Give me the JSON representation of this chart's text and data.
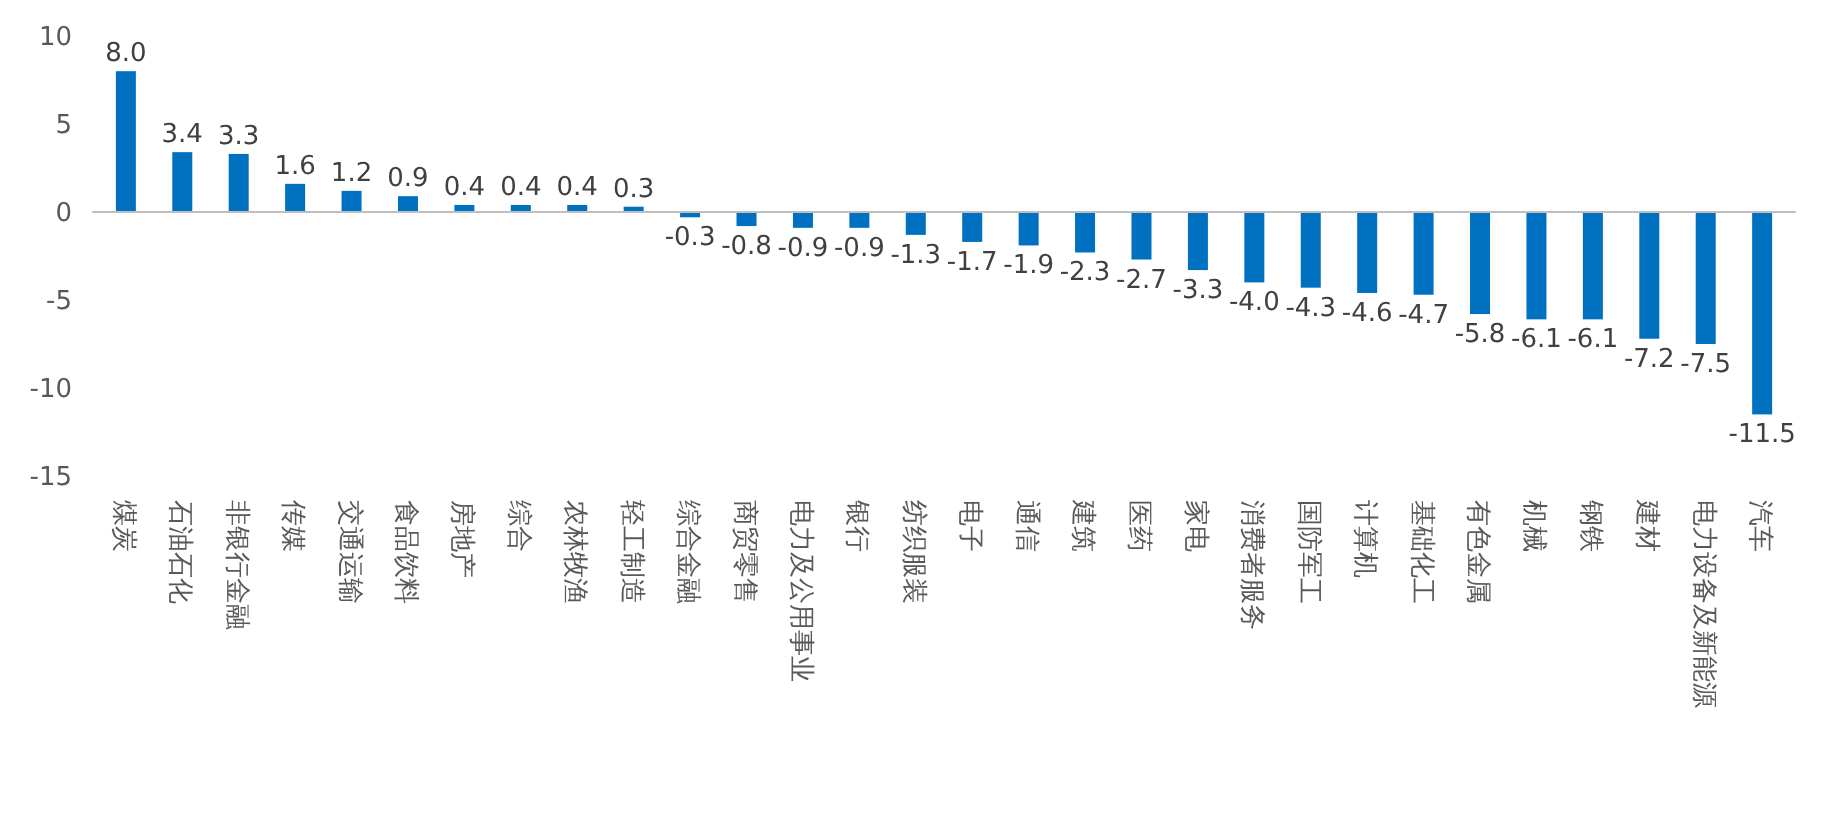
{
  "chart_data": {
    "type": "bar",
    "categories": [
      "煤炭",
      "石油石化",
      "非银行金融",
      "传媒",
      "交通运输",
      "食品饮料",
      "房地产",
      "综合",
      "农林牧渔",
      "轻工制造",
      "综合金融",
      "商贸零售",
      "电力及公用事业",
      "银行",
      "纺织服装",
      "电子",
      "通信",
      "建筑",
      "医药",
      "家电",
      "消费者服务",
      "国防军工",
      "计算机",
      "基础化工",
      "有色金属",
      "机械",
      "钢铁",
      "建材",
      "电力设备及新能源",
      "汽车"
    ],
    "values": [
      8.0,
      3.4,
      3.3,
      1.6,
      1.2,
      0.9,
      0.4,
      0.4,
      0.4,
      0.3,
      -0.3,
      -0.8,
      -0.9,
      -0.9,
      -1.3,
      -1.7,
      -1.9,
      -2.3,
      -2.7,
      -3.3,
      -4.0,
      -4.3,
      -4.6,
      -4.7,
      -5.8,
      -6.1,
      -6.1,
      -7.2,
      -7.5,
      -11.5
    ],
    "value_labels": [
      "8.0",
      "3.4",
      "3.3",
      "1.6",
      "1.2",
      "0.9",
      "0.4",
      "0.4",
      "0.4",
      "0.3",
      "-0.3",
      "-0.8",
      "-0.9",
      "-0.9",
      "-1.3",
      "-1.7",
      "-1.9",
      "-2.3",
      "-2.7",
      "-3.3",
      "-4.0",
      "-4.3",
      "-4.6",
      "-4.7",
      "-5.8",
      "-6.1",
      "-6.1",
      "-7.2",
      "-7.5",
      "-11.5"
    ],
    "color": "#0070c0",
    "ylim": [
      -15,
      10
    ],
    "yticks": [
      -15,
      -10,
      -5,
      0,
      5,
      10
    ]
  }
}
